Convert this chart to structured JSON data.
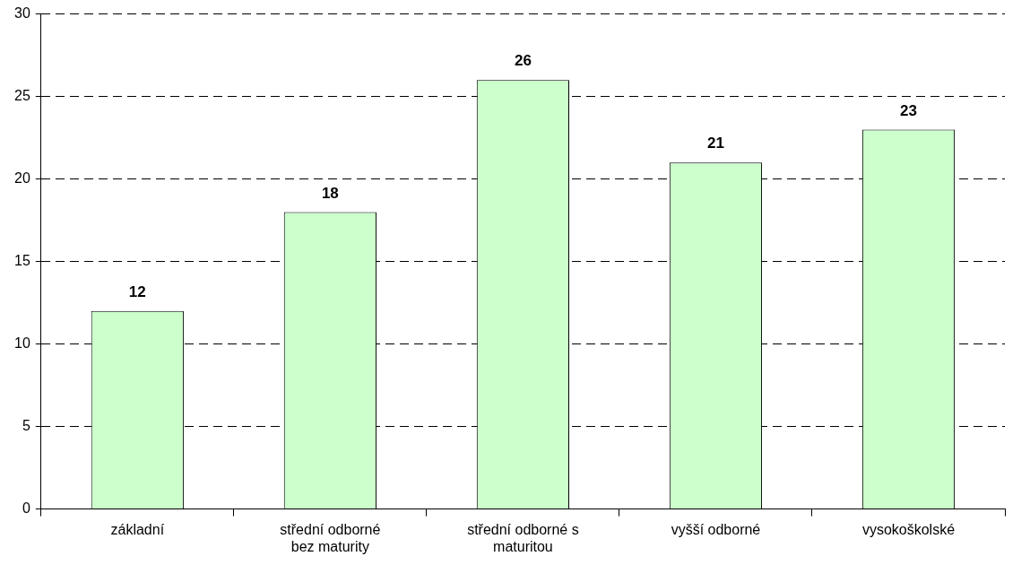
{
  "chart_data": {
    "type": "bar",
    "categories": [
      "základní",
      "střední odborné bez maturity",
      "střední odborné s maturitou",
      "vyšší odborné",
      "vysokoškolské"
    ],
    "values": [
      12,
      18,
      26,
      21,
      23
    ],
    "color": "#ccffcc",
    "ylim": [
      0,
      30
    ],
    "yticks": [
      0,
      5,
      10,
      15,
      20,
      25,
      30
    ],
    "grid": "y",
    "data_labels": true,
    "legend": false
  }
}
